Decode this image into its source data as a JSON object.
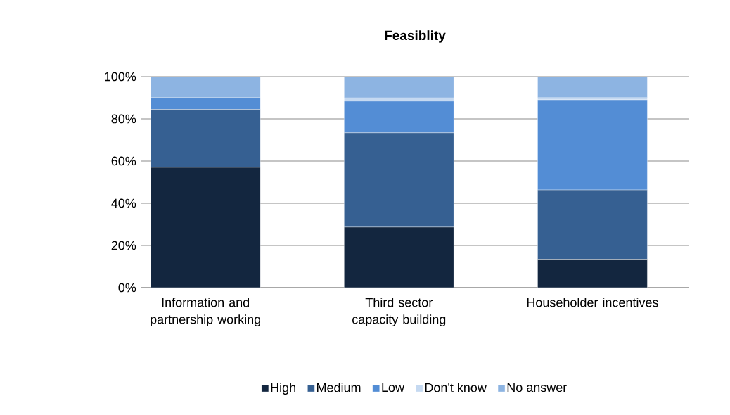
{
  "chart_data": {
    "type": "bar",
    "title": "Feasiblity",
    "stacked": true,
    "categories": [
      "Information and partnership working",
      "Third sector capacity building",
      "Householder incentives"
    ],
    "series": [
      {
        "name": "High",
        "color": "#13263f",
        "values": [
          57,
          28.7,
          13.5
        ]
      },
      {
        "name": "Medium",
        "color": "#366092",
        "values": [
          27.5,
          44.7,
          32.8
        ]
      },
      {
        "name": "Low",
        "color": "#538dd5",
        "values": [
          5.5,
          15,
          42.7
        ]
      },
      {
        "name": "Don't know",
        "color": "#c5d9f1",
        "values": [
          0,
          1.5,
          1
        ]
      },
      {
        "name": "No answer",
        "color": "#8db4e2",
        "values": [
          10,
          10.1,
          10
        ]
      }
    ],
    "ylim": [
      0,
      100
    ],
    "yticks": [
      {
        "value": 0,
        "label": "0%"
      },
      {
        "value": 20,
        "label": "20%"
      },
      {
        "value": 40,
        "label": "40%"
      },
      {
        "value": 60,
        "label": "60%"
      },
      {
        "value": 80,
        "label": "80%"
      },
      {
        "value": 100,
        "label": "100%"
      }
    ],
    "grid": "y",
    "legend": "bottom"
  }
}
